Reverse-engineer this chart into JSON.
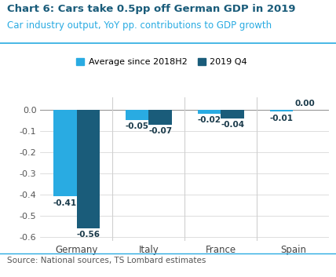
{
  "title_line1": "Chart 6: Cars take 0.5pp off German GDP in 2019",
  "title_line2": "Car industry output, YoY pp. contributions to GDP growth",
  "categories": [
    "Germany",
    "Italy",
    "France",
    "Spain"
  ],
  "series1_label": "Average since 2018H2",
  "series2_label": "2019 Q4",
  "series1_values": [
    -0.41,
    -0.05,
    -0.02,
    -0.01
  ],
  "series2_values": [
    -0.56,
    -0.07,
    -0.04,
    0.0
  ],
  "series1_color": "#29ABE2",
  "series2_color": "#1A5C7A",
  "ylim": [
    -0.62,
    0.06
  ],
  "yticks": [
    0.0,
    -0.1,
    -0.2,
    -0.3,
    -0.4,
    -0.5,
    -0.6
  ],
  "source_text": "Source: National sources, TS Lombard estimates",
  "title1_color": "#1A5C7A",
  "title2_color": "#29ABE2",
  "bar_width": 0.32,
  "background_color": "#FFFFFF",
  "grid_color": "#D0D0D0",
  "label_color": "#1A3A4A",
  "label_fontsize": 7.5,
  "axis_color": "#999999"
}
